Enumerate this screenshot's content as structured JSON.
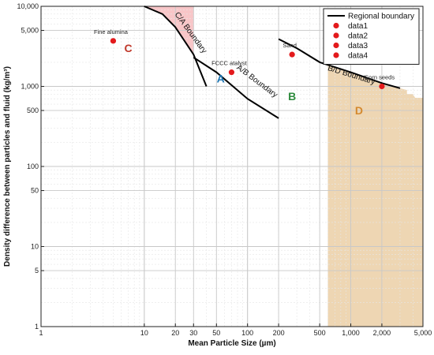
{
  "chart_data": {
    "type": "scatter",
    "title": "",
    "xlabel": "Mean Particle Size (µm)",
    "ylabel": "Density difference between particles and fluid (kg/m³)",
    "xscale": "log",
    "yscale": "log",
    "xlim": [
      1,
      5000
    ],
    "ylim": [
      1,
      10000
    ],
    "grid": true,
    "legend_position": "top-right",
    "x_ticks": [
      {
        "v": 1,
        "label": "1"
      },
      {
        "v": 10,
        "label": "10"
      },
      {
        "v": 20,
        "label": "20"
      },
      {
        "v": 30,
        "label": "30"
      },
      {
        "v": 50,
        "label": "50"
      },
      {
        "v": 100,
        "label": "100"
      },
      {
        "v": 200,
        "label": "200"
      },
      {
        "v": 500,
        "label": "500"
      },
      {
        "v": 1000,
        "label": "1,000"
      },
      {
        "v": 2000,
        "label": "2,000"
      },
      {
        "v": 5000,
        "label": "5,000"
      }
    ],
    "y_ticks": [
      {
        "v": 1,
        "label": "1"
      },
      {
        "v": 5,
        "label": "5"
      },
      {
        "v": 10,
        "label": "10"
      },
      {
        "v": 50,
        "label": "50"
      },
      {
        "v": 100,
        "label": "100"
      },
      {
        "v": 500,
        "label": "500"
      },
      {
        "v": 1000,
        "label": "1,000"
      },
      {
        "v": 5000,
        "label": "5,000"
      },
      {
        "v": 10000,
        "label": "10,000"
      }
    ],
    "legend": [
      {
        "name": "Regional boundary",
        "kind": "line",
        "color": "#000000"
      },
      {
        "name": "data1",
        "kind": "marker",
        "color": "#e31a1c"
      },
      {
        "name": "data2",
        "kind": "marker",
        "color": "#e31a1c"
      },
      {
        "name": "data3",
        "kind": "marker",
        "color": "#e31a1c"
      },
      {
        "name": "data4",
        "kind": "marker",
        "color": "#e31a1c"
      }
    ],
    "boundaries": [
      {
        "points": [
          [
            10,
            10000
          ],
          [
            15,
            8000
          ],
          [
            20,
            5500
          ],
          [
            30,
            2500
          ],
          [
            40,
            1000
          ]
        ]
      },
      {
        "points": [
          [
            30,
            2300
          ],
          [
            50,
            1500
          ],
          [
            100,
            700
          ],
          [
            200,
            400
          ]
        ]
      },
      {
        "points": [
          [
            200,
            3900
          ],
          [
            300,
            3000
          ],
          [
            500,
            2000
          ],
          [
            1000,
            1500
          ],
          [
            2000,
            1100
          ],
          [
            3000,
            950
          ]
        ]
      }
    ],
    "regions": [
      {
        "name": "C/A region",
        "color": "#f4a0a4",
        "opacity": 0.6,
        "points": [
          [
            10,
            10000
          ],
          [
            30,
            10000
          ],
          [
            30,
            2500
          ],
          [
            20,
            5500
          ],
          [
            15,
            8000
          ]
        ]
      },
      {
        "name": "D region",
        "color": "#e8c89a",
        "opacity": 0.75,
        "points": [
          [
            600,
            1900
          ],
          [
            1000,
            1500
          ],
          [
            2000,
            1100
          ],
          [
            3000,
            950
          ],
          [
            3500,
            900
          ],
          [
            3500,
            800
          ],
          [
            4000,
            800
          ],
          [
            4200,
            720
          ],
          [
            5000,
            720
          ],
          [
            5000,
            1
          ],
          [
            600,
            1
          ]
        ]
      }
    ],
    "points": [
      {
        "series": "data1",
        "x": 5,
        "y": 3700,
        "label": "Fine alumina"
      },
      {
        "series": "data2",
        "x": 70,
        "y": 1500,
        "label": "FCCC atalyst"
      },
      {
        "series": "data3",
        "x": 270,
        "y": 2500,
        "label": "Sand"
      },
      {
        "series": "data4",
        "x": 2000,
        "y": 1000,
        "label": "Corn seeds"
      }
    ],
    "boundary_labels": [
      {
        "text": "C/A Boundary",
        "x": 27,
        "y": 4500,
        "angle": 54
      },
      {
        "text": "A/B Boundary",
        "x": 120,
        "y": 1100,
        "angle": 37
      },
      {
        "text": "B/D Boundary",
        "x": 1000,
        "y": 1300,
        "angle": 17
      }
    ],
    "group_labels": [
      {
        "text": "C",
        "x": 7,
        "y": 3000,
        "color": "#c0392b"
      },
      {
        "text": "A",
        "x": 55,
        "y": 1250,
        "color": "#1f77b4"
      },
      {
        "text": "B",
        "x": 270,
        "y": 750,
        "color": "#2e8b3e"
      },
      {
        "text": "D",
        "x": 1200,
        "y": 500,
        "color": "#d4892f"
      }
    ],
    "marker_color": "#e31a1c"
  }
}
